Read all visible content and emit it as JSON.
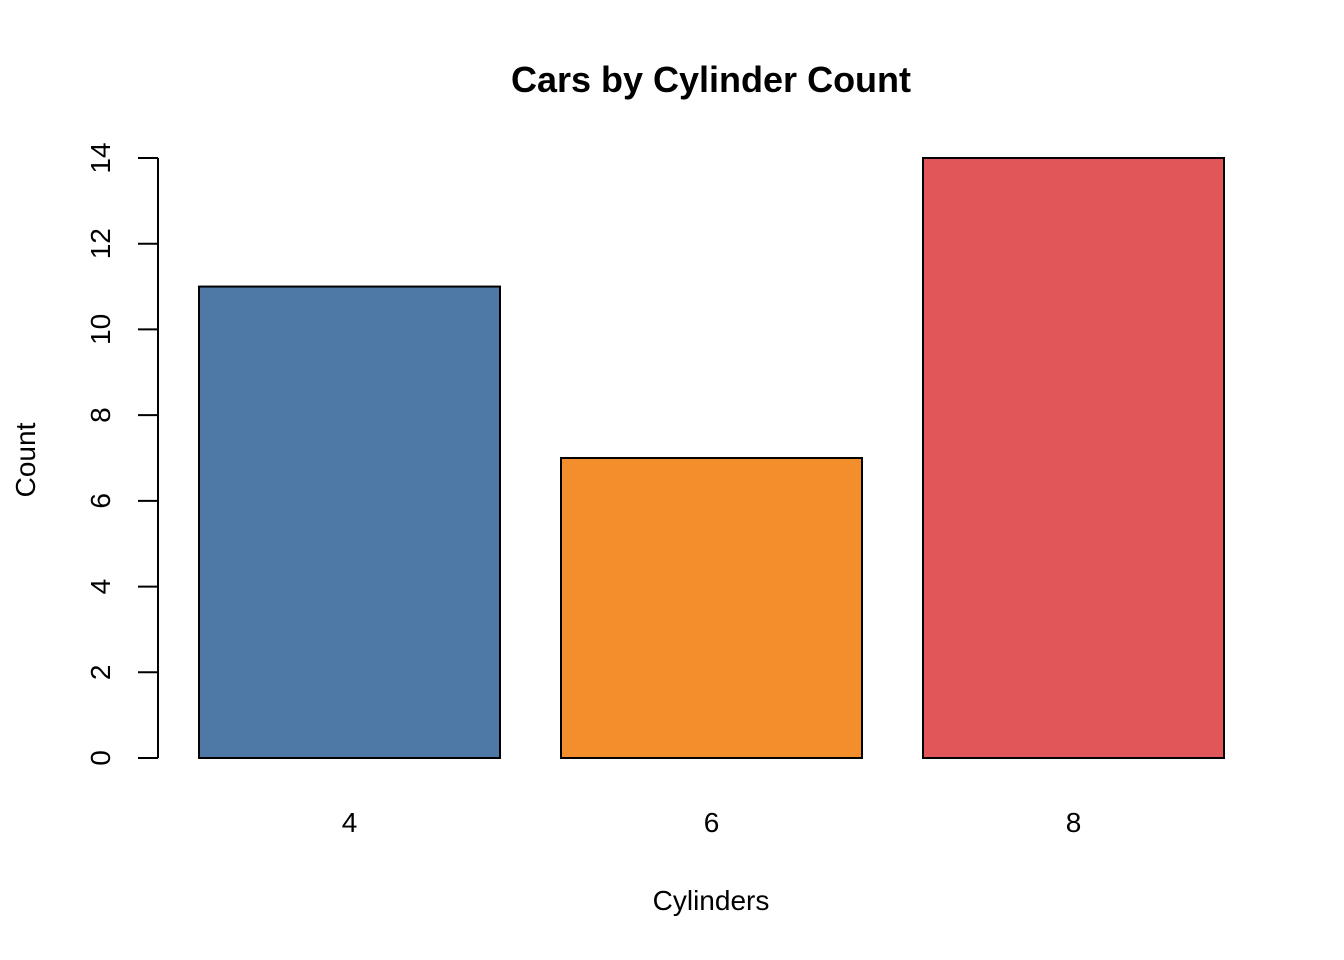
{
  "chart_data": {
    "type": "bar",
    "title": "Cars by Cylinder Count",
    "xlabel": "Cylinders",
    "ylabel": "Count",
    "categories": [
      "4",
      "6",
      "8"
    ],
    "values": [
      11,
      7,
      14
    ],
    "colors": [
      "#4e79a7",
      "#f28e2b",
      "#e15759"
    ],
    "ylim": [
      0,
      14
    ],
    "yticks": [
      0,
      2,
      4,
      6,
      8,
      10,
      12,
      14
    ],
    "grid": false,
    "legend": "none"
  }
}
